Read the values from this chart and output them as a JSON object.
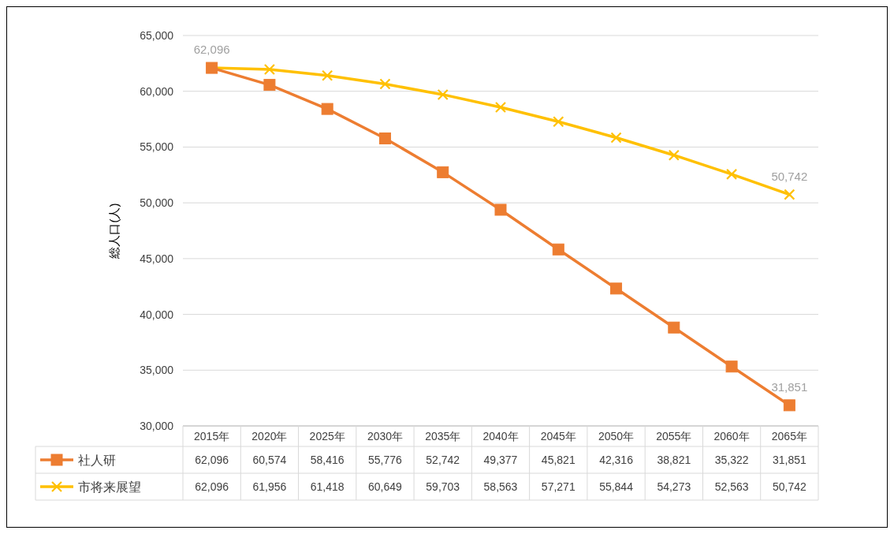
{
  "chart_data": [
    {
      "type": "line",
      "ylabel": "総人口(人)",
      "categories": [
        "2015年",
        "2020年",
        "2025年",
        "2030年",
        "2035年",
        "2040年",
        "2045年",
        "2050年",
        "2055年",
        "2060年",
        "2065年"
      ],
      "series": [
        {
          "name": "社人研",
          "color": "#ed7d31",
          "marker": "square",
          "values": [
            62096,
            60574,
            58416,
            55776,
            52742,
            49377,
            45821,
            42316,
            38821,
            35322,
            31851
          ],
          "value_labels": [
            "62,096",
            null,
            null,
            null,
            null,
            null,
            null,
            null,
            null,
            null,
            "31,851"
          ]
        },
        {
          "name": "市将来展望",
          "color": "#ffc000",
          "marker": "cross",
          "values": [
            62096,
            61956,
            61418,
            60649,
            59703,
            58563,
            57271,
            55844,
            54273,
            52563,
            50742
          ],
          "value_labels": [
            null,
            null,
            null,
            null,
            null,
            null,
            null,
            null,
            null,
            null,
            "50,742"
          ]
        }
      ],
      "ylim": [
        30000,
        65000
      ],
      "yticks": [
        {
          "value": 30000,
          "label": "30,000"
        },
        {
          "value": 35000,
          "label": "35,000"
        },
        {
          "value": 40000,
          "label": "40,000"
        },
        {
          "value": 45000,
          "label": "45,000"
        },
        {
          "value": 50000,
          "label": "50,000"
        },
        {
          "value": 55000,
          "label": "55,000"
        },
        {
          "value": 60000,
          "label": "60,000"
        },
        {
          "value": 65000,
          "label": "65,000"
        }
      ],
      "grid": "y",
      "legend": "bottom"
    },
    {
      "type": "other",
      "cell_labels": [
        [
          "62,096",
          "60,574",
          "58,416",
          "55,776",
          "52,742",
          "49,377",
          "45,821",
          "42,316",
          "38,821",
          "35,322",
          "31,851"
        ],
        [
          "62,096",
          "61,956",
          "61,418",
          "60,649",
          "59,703",
          "58,563",
          "57,271",
          "55,844",
          "54,273",
          "52,563",
          "50,742"
        ]
      ]
    }
  ]
}
